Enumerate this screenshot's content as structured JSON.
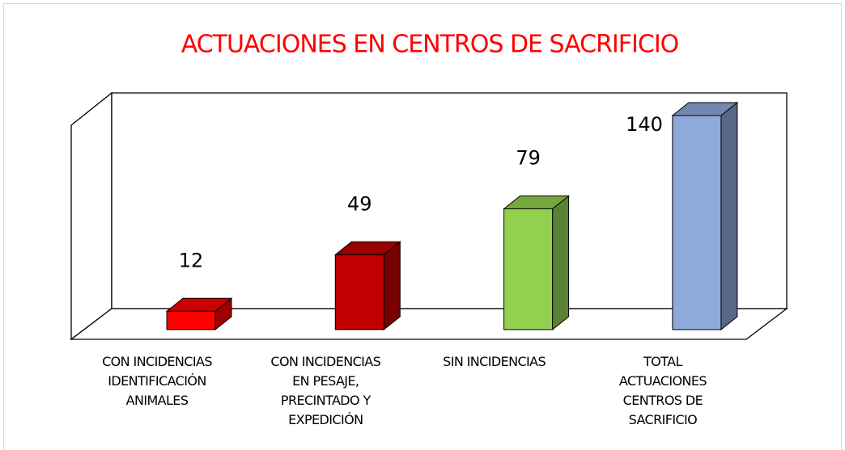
{
  "chart_data": {
    "type": "bar3d",
    "title": "ACTUACIONES EN CENTROS DE SACRIFICIO",
    "categories": [
      "CON INCIDENCIAS\nIDENTIFICACIÓN\nANIMALES",
      "CON INCIDENCIAS\nEN PESAJE,\nPRECINTADO Y\nEXPEDICIÓN",
      "SIN INCIDENCIAS",
      "TOTAL\nACTUACIONES\nCENTROS DE\nSACRIFICIO"
    ],
    "values": [
      12,
      49,
      79,
      140
    ],
    "colors": [
      "#ff0000",
      "#c00000",
      "#92d050",
      "#8eaadb"
    ]
  }
}
